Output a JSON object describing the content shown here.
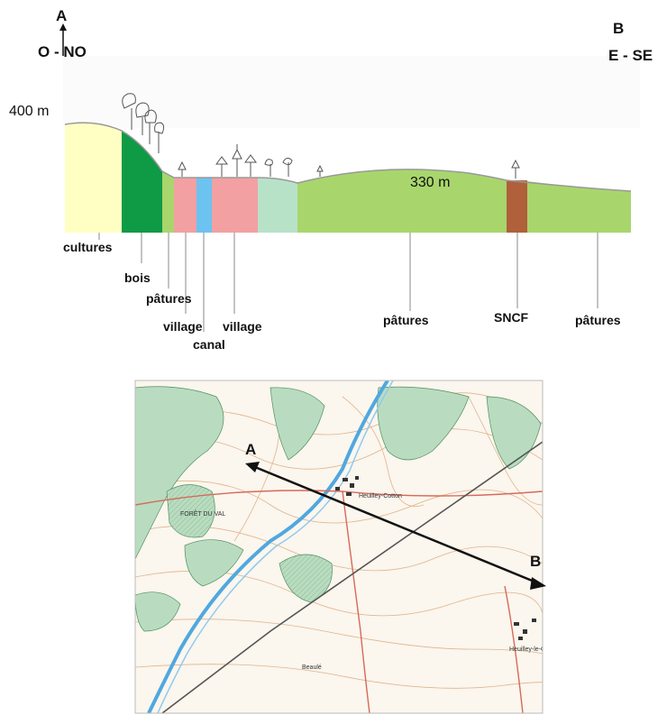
{
  "profile": {
    "point_a": "A",
    "point_b": "B",
    "direction_left": "O - NO",
    "direction_right": "E - SE",
    "altitude_top": "400 m",
    "altitude_mid": "330 m",
    "zones": [
      {
        "label": "cultures",
        "color": "#ffffc4"
      },
      {
        "label": "bois",
        "color": "#0f9a46"
      },
      {
        "label": "pâtures",
        "color": "#a8d66c"
      },
      {
        "label": "village",
        "color": "#f2a0a2"
      },
      {
        "label": "canal",
        "color": "#6cc3ef"
      },
      {
        "label": "village",
        "color": "#f2a0a2"
      },
      {
        "label": "pâtures",
        "color": "#a8d66c"
      },
      {
        "label": "SNCF",
        "color": "#b0603a"
      },
      {
        "label": "pâtures",
        "color": "#a8d66c"
      }
    ],
    "unlabeled_zone_color": "#b8e2c8"
  },
  "map": {
    "point_a": "A",
    "point_b": "B",
    "place_names": [
      "Heuilley-Cotton",
      "Heuilley-le-Grand",
      "FORÊT DU VAL",
      "Beaulé"
    ]
  }
}
